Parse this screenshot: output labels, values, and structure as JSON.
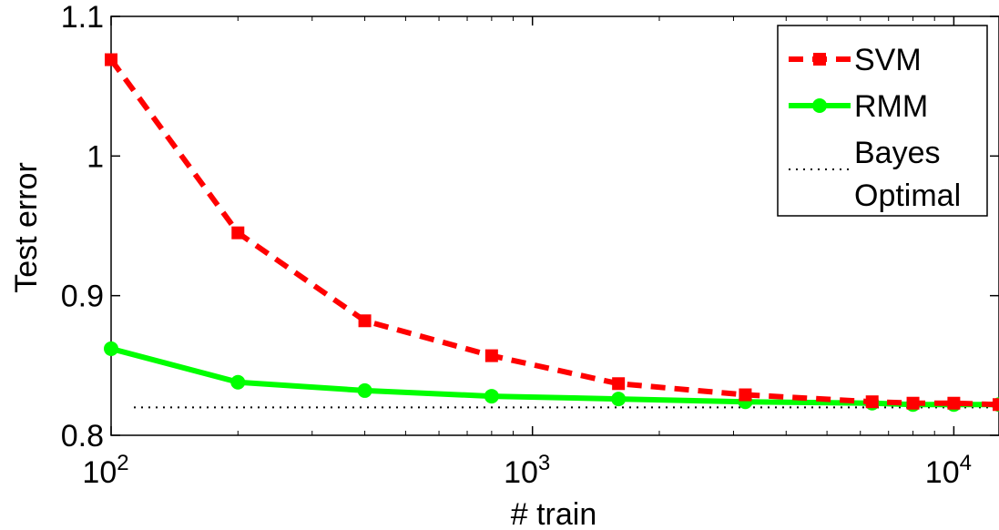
{
  "chart_data": {
    "type": "line",
    "xscale": "log",
    "xlim": [
      100,
      12800
    ],
    "ylim": [
      0.8,
      1.1
    ],
    "xlabel": "# train",
    "ylabel": "Test error",
    "xticks": [
      {
        "value": 100,
        "base": "10",
        "exp": "2"
      },
      {
        "value": 1000,
        "base": "10",
        "exp": "3"
      },
      {
        "value": 10000,
        "base": "10",
        "exp": "4"
      }
    ],
    "yticks": [
      {
        "value": 0.8,
        "label": "0.8"
      },
      {
        "value": 0.9,
        "label": "0.9"
      },
      {
        "value": 1.0,
        "label": "1"
      },
      {
        "value": 1.1,
        "label": "1.1"
      }
    ],
    "grid": false,
    "legend_position": "top-right",
    "x": [
      100,
      200,
      400,
      800,
      1600,
      3200,
      6400,
      8000,
      10000,
      12800
    ],
    "series": [
      {
        "name": "SVM",
        "color": "#ff0000",
        "line_style": "dashed",
        "marker": "square",
        "values": [
          1.069,
          0.945,
          0.882,
          0.857,
          0.837,
          0.829,
          0.824,
          0.823,
          0.823,
          0.822
        ]
      },
      {
        "name": "RMM",
        "color": "#00ff00",
        "line_style": "solid",
        "marker": "circle",
        "values": [
          0.862,
          0.838,
          0.832,
          0.828,
          0.826,
          0.824,
          0.823,
          0.822,
          0.822,
          0.822
        ]
      },
      {
        "name": "Bayes Optimal",
        "name_lines": [
          "Bayes",
          "Optimal"
        ],
        "color": "#000000",
        "line_style": "dotted",
        "marker": "none",
        "values": [
          0.82,
          0.82,
          0.82,
          0.82,
          0.82,
          0.82,
          0.82,
          0.82,
          0.82,
          0.82
        ]
      }
    ]
  }
}
